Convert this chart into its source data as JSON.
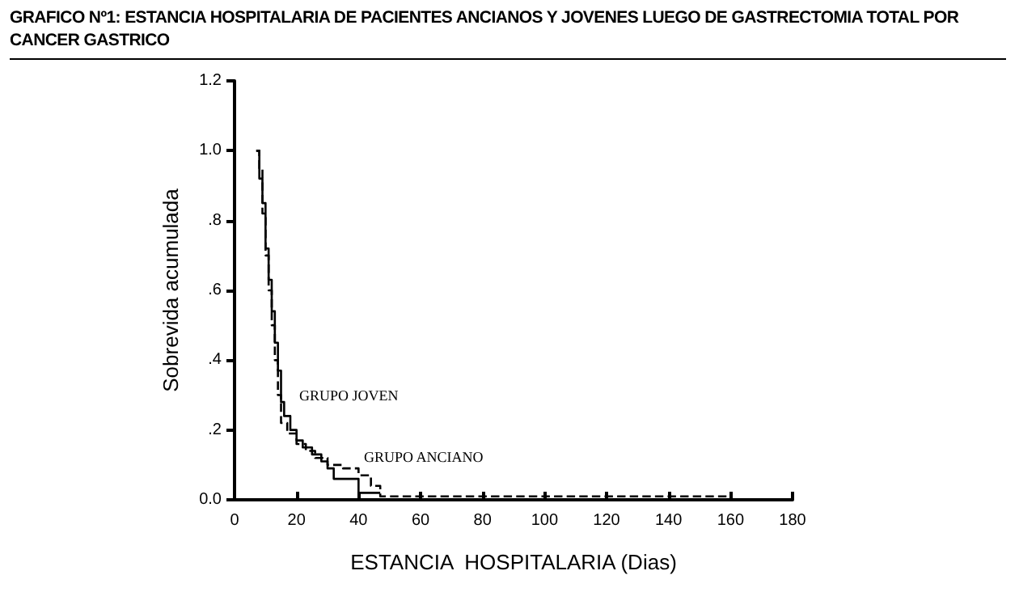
{
  "chart_data": {
    "type": "step",
    "title": "GRAFICO Nº1: ESTANCIA HOSPITALARIA DE PACIENTES ANCIANOS Y JOVENES LUEGO DE GASTRECTOMIA TOTAL POR CANCER GASTRICO",
    "xlabel": "ESTANCIA  HOSPITALARIA (Dias)",
    "ylabel": "Sobrevida acumulada",
    "xlim": [
      0,
      180
    ],
    "xticks": [
      0,
      20,
      40,
      60,
      80,
      100,
      120,
      140,
      160,
      180
    ],
    "ylim": [
      0,
      1.2
    ],
    "yticks": [
      {
        "value": 0,
        "label": "0.0"
      },
      {
        "value": 0.2,
        "label": ".2"
      },
      {
        "value": 0.4,
        "label": ".4"
      },
      {
        "value": 0.6,
        "label": ".6"
      },
      {
        "value": 0.8,
        "label": ".8"
      },
      {
        "value": 1,
        "label": "1.0"
      },
      {
        "value": 1.2,
        "label": "1.2"
      }
    ],
    "grid": false,
    "annotations": [
      "GRUPO JOVEN",
      "GRUPO ANCIANO"
    ],
    "series": [
      {
        "color": "#000000",
        "line_style": "solid",
        "x": [
          7,
          8,
          9,
          10,
          11,
          12,
          13,
          14,
          15,
          16,
          18,
          20,
          22,
          25,
          28,
          30,
          32,
          40,
          47
        ],
        "values": [
          1,
          0.92,
          0.85,
          0.72,
          0.63,
          0.54,
          0.45,
          0.37,
          0.28,
          0.24,
          0.2,
          0.17,
          0.15,
          0.13,
          0.11,
          0.09,
          0.06,
          0.02,
          0.02
        ]
      },
      {
        "color": "#000000",
        "line_style": "dashed",
        "x": [
          7,
          8,
          9,
          10,
          11,
          12,
          13,
          14,
          15,
          17,
          20,
          23,
          26,
          30,
          35,
          40,
          44,
          47,
          160
        ],
        "values": [
          1,
          0.95,
          0.82,
          0.7,
          0.6,
          0.5,
          0.4,
          0.3,
          0.22,
          0.19,
          0.16,
          0.14,
          0.12,
          0.1,
          0.09,
          0.07,
          0.04,
          0.01,
          0.01
        ]
      }
    ]
  }
}
